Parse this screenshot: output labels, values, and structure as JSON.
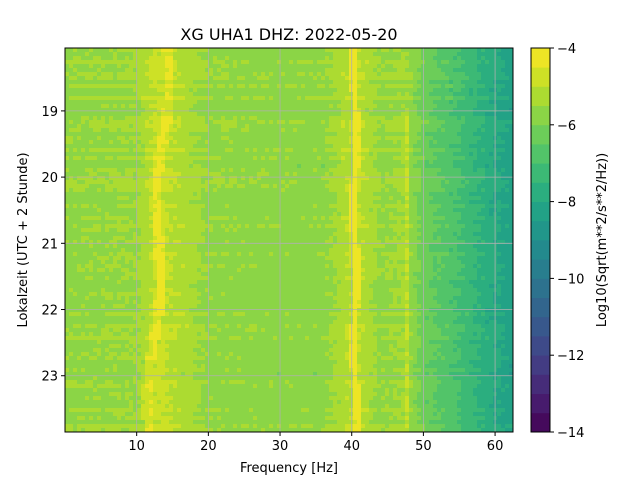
{
  "chart_data": {
    "type": "heatmap",
    "title": "XG UHA1  DHZ: 2022-05-20",
    "xlabel": "Frequency [Hz]",
    "ylabel": "Lokalzeit (UTC + 2 Stunde)",
    "colorbar_label": "Log10(Sqrt(m**2/s**2/Hz))",
    "colormap": "viridis",
    "xlim": [
      0,
      62.5
    ],
    "ylim": [
      18.05,
      23.85
    ],
    "y_inverted": true,
    "grid": true,
    "x_ticks": [
      10,
      20,
      30,
      40,
      50,
      60
    ],
    "x_tick_labels": [
      "10",
      "20",
      "30",
      "40",
      "50",
      "60"
    ],
    "y_ticks": [
      19,
      20,
      21,
      22,
      23
    ],
    "y_tick_labels": [
      "19",
      "20",
      "21",
      "22",
      "23"
    ],
    "color_range": [
      -14,
      -4
    ],
    "colorbar_ticks": [
      -4,
      -6,
      -8,
      -10,
      -12,
      -14
    ],
    "colorbar_tick_labels": [
      "−4",
      "−6",
      "−8",
      "−10",
      "−12",
      "−14"
    ],
    "spectral_profile": [
      {
        "f": 0,
        "v": -5.6
      },
      {
        "f": 10,
        "v": -5.5
      },
      {
        "f": 13,
        "v": -4.8
      },
      {
        "f": 20,
        "v": -5.6
      },
      {
        "f": 30,
        "v": -5.7
      },
      {
        "f": 36,
        "v": -5.7
      },
      {
        "f": 40.5,
        "v": -4.9
      },
      {
        "f": 44,
        "v": -5.6
      },
      {
        "f": 47.5,
        "v": -5.4
      },
      {
        "f": 50,
        "v": -6.2
      },
      {
        "f": 55,
        "v": -7.0
      },
      {
        "f": 58,
        "v": -7.6
      },
      {
        "f": 62.5,
        "v": -8.3
      }
    ],
    "spectral_lines_hz": [
      13,
      40.5,
      42,
      47.8
    ]
  }
}
